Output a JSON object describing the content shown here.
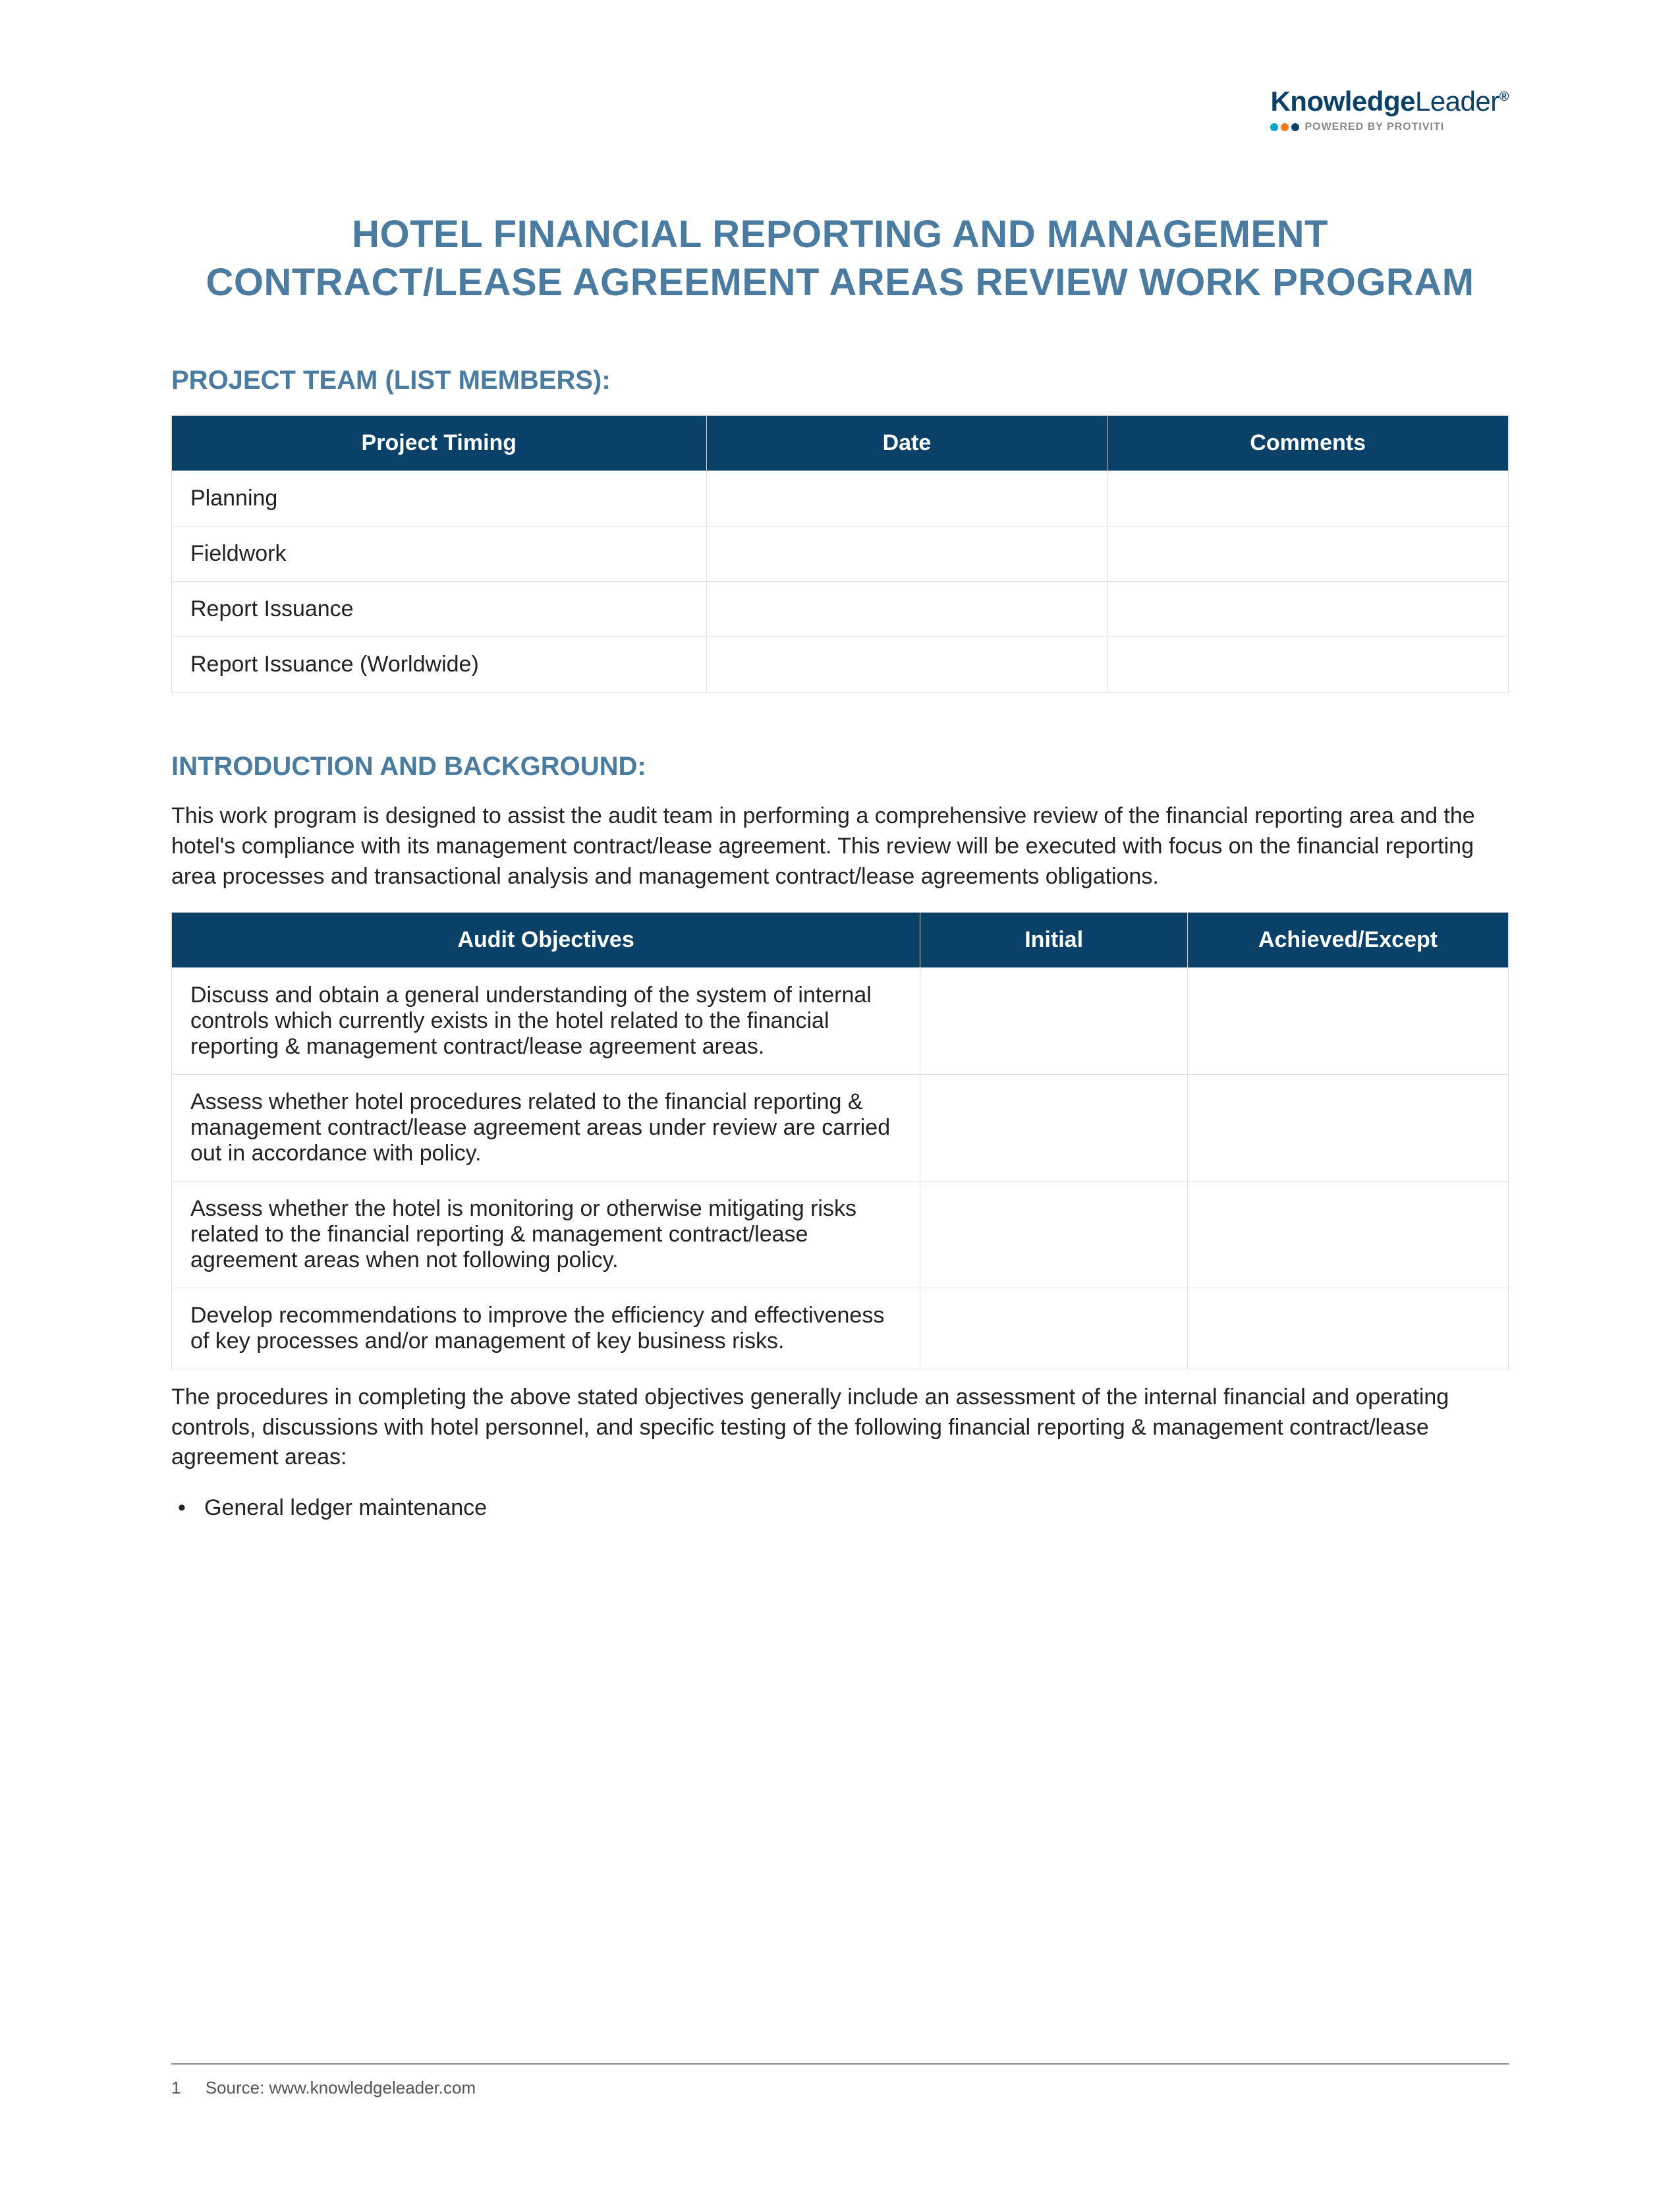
{
  "logo": {
    "brand_bold": "Knowledge",
    "brand_light": "Leader",
    "reg": "®",
    "powered": "POWERED BY PROTIVITI",
    "dot_colors": [
      "#00a8c6",
      "#f47b20",
      "#0a4168"
    ],
    "brand_color": "#0a4168"
  },
  "title": "HOTEL FINANCIAL REPORTING AND MANAGEMENT CONTRACT/LEASE AGREEMENT AREAS REVIEW WORK PROGRAM",
  "section1": {
    "heading": "PROJECT TEAM (LIST MEMBERS):",
    "columns": [
      "Project Timing",
      "Date",
      "Comments"
    ],
    "rows": [
      [
        "Planning",
        "",
        ""
      ],
      [
        "Fieldwork",
        "",
        ""
      ],
      [
        "Report Issuance",
        "",
        ""
      ],
      [
        "Report Issuance (Worldwide)",
        "",
        ""
      ]
    ]
  },
  "section2": {
    "heading": "INTRODUCTION AND BACKGROUND:",
    "intro": "This work program is designed to assist the audit team in performing a comprehensive review of the financial reporting area and the hotel's compliance with its management contract/lease agreement. This review will be executed with focus on the financial reporting area processes and transactional analysis and management contract/lease agreements obligations.",
    "columns": [
      "Audit Objectives",
      "Initial",
      "Achieved/Except"
    ],
    "rows": [
      [
        "Discuss and obtain a general understanding of the system of internal controls which currently exists in the hotel related to the financial reporting & management contract/lease agreement areas.",
        "",
        ""
      ],
      [
        "Assess whether hotel procedures related to the financial reporting & management contract/lease agreement areas under review are carried out in accordance with policy.",
        "",
        ""
      ],
      [
        "Assess whether the hotel is monitoring or otherwise mitigating risks related to the financial reporting & management contract/lease agreement areas when not following policy.",
        "",
        ""
      ],
      [
        "Develop recommendations to improve the efficiency and effectiveness of key processes and/or management of key business risks.",
        "",
        ""
      ]
    ],
    "outro": "The procedures in completing the above stated objectives generally include an assessment of the internal financial and operating controls, discussions with hotel personnel, and specific testing of the following financial reporting & management contract/lease agreement areas:",
    "bullets": [
      "General ledger maintenance"
    ]
  },
  "footer": {
    "page": "1",
    "source": "Source: www.knowledgeleader.com"
  },
  "colors": {
    "heading": "#4a7ba0",
    "table_header_bg": "#0a4168",
    "table_header_fg": "#ffffff",
    "border": "#e0e0e0",
    "text": "#222222"
  }
}
